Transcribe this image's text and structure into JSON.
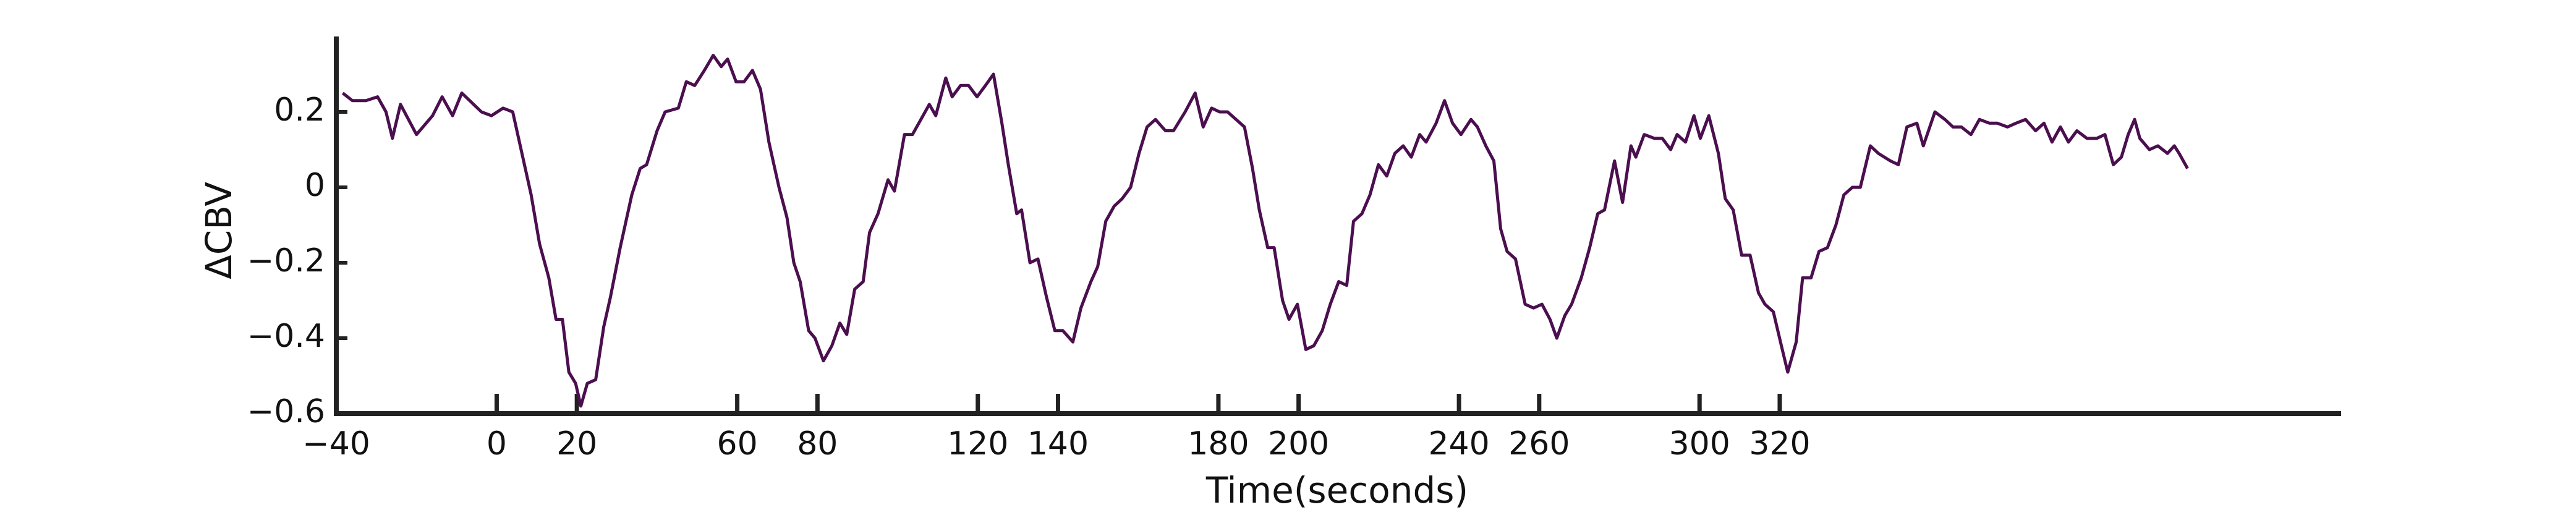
{
  "chart_data": {
    "type": "line",
    "xlabel": "Time(seconds)",
    "ylabel": "ΔCBV",
    "color": "#4b0f4f",
    "xlim": [
      -40,
      460
    ],
    "ylim": [
      -0.6,
      0.4
    ],
    "xticks": [
      {
        "value": -40,
        "label": "−40"
      },
      0,
      20,
      60,
      80,
      120,
      140,
      180,
      200,
      240,
      260,
      300,
      320
    ],
    "yticks": [
      {
        "value": -0.6,
        "label": "−0.6"
      },
      {
        "value": -0.4,
        "label": "−0.4"
      },
      {
        "value": -0.2,
        "label": "−0.2"
      },
      0,
      0.2
    ],
    "x": [
      -38.4,
      -36,
      -32.6,
      -29.7,
      -27.6,
      -26,
      -24,
      -20,
      -16,
      -13.6,
      -11,
      -8.7,
      -3.8,
      -1.3,
      1.6,
      4,
      8.6,
      10.7,
      13,
      14.8,
      16.4,
      18,
      19.7,
      21,
      22.6,
      24.7,
      26.7,
      28.4,
      30.8,
      33.7,
      35.8,
      37.4,
      40,
      42,
      45.3,
      47.3,
      49.4,
      51.8,
      54,
      56,
      57.6,
      59.7,
      61.7,
      63.8,
      65.8,
      67.9,
      70.4,
      72.4,
      74.1,
      75.7,
      77.8,
      79.4,
      81.5,
      83.6,
      85.6,
      87.3,
      89.3,
      91.4,
      93,
      95.1,
      97.6,
      99.2,
      101.7,
      103.7,
      105.8,
      107.9,
      109.5,
      112,
      113.6,
      115.7,
      117.7,
      119.8,
      121.9,
      123.9,
      126,
      127.6,
      129.7,
      130.9,
      133,
      135,
      137.1,
      139.2,
      141.2,
      143.7,
      145.7,
      148.2,
      149.9,
      151.9,
      154,
      156,
      158.1,
      160.2,
      162.2,
      164.3,
      166.8,
      168.8,
      171.7,
      174.2,
      176.2,
      178.3,
      180.3,
      182.3,
      184.4,
      186.5,
      188.5,
      190.2,
      192.3,
      193.9,
      196,
      197.6,
      199.7,
      201.8,
      203.8,
      205.9,
      207.9,
      210,
      212,
      213.7,
      215.8,
      217.8,
      219.9,
      222,
      224,
      226.1,
      228.1,
      230.2,
      231.8,
      234.3,
      236.4,
      238.4,
      240.5,
      243,
      244.6,
      246.7,
      248.7,
      250.4,
      252,
      254.1,
      256.5,
      258.6,
      260.7,
      262.7,
      264.4,
      266.4,
      268.1,
      270.5,
      272.6,
      274.6,
      276.3,
      278.8,
      280.8,
      282.9,
      284.1,
      286.2,
      288.7,
      290.7,
      292.8,
      294.4,
      296.5,
      298.6,
      300.2,
      302.3,
      304.7,
      306.4,
      308.4,
      310.5,
      312.6,
      314.7,
      316.3,
      318.4,
      320.4,
      322,
      324.1,
      325.7,
      327.8,
      329.8,
      331.9,
      334,
      336,
      338.1,
      340.1,
      342.6,
      344.6,
      347.6,
      349.6,
      351.7,
      354.2,
      355.8,
      358.7,
      361.2,
      363.2,
      365.3,
      367.7,
      369.8,
      372.3,
      374.3,
      376.8,
      378.9,
      381.3,
      383.8,
      385.9,
      387.9,
      390,
      392,
      394.1,
      396.6,
      399.1,
      401.1,
      403.2,
      405.2,
      406.9,
      408.5,
      409.8,
      412.2,
      414.3,
      416.7,
      418.4,
      419.6,
      421.7
    ],
    "values": [
      0.25,
      0.23,
      0.23,
      0.24,
      0.2,
      0.13,
      0.22,
      0.14,
      0.19,
      0.24,
      0.19,
      0.25,
      0.2,
      0.19,
      0.21,
      0.2,
      -0.02,
      -0.15,
      -0.24,
      -0.35,
      -0.35,
      -0.49,
      -0.52,
      -0.58,
      -0.52,
      -0.51,
      -0.37,
      -0.29,
      -0.16,
      -0.02,
      0.05,
      0.06,
      0.15,
      0.2,
      0.21,
      0.28,
      0.27,
      0.31,
      0.35,
      0.32,
      0.34,
      0.28,
      0.28,
      0.31,
      0.26,
      0.12,
      0,
      -0.08,
      -0.2,
      -0.25,
      -0.38,
      -0.4,
      -0.46,
      -0.42,
      -0.36,
      -0.39,
      -0.27,
      -0.25,
      -0.12,
      -0.07,
      0.02,
      -0.01,
      0.14,
      0.14,
      0.18,
      0.22,
      0.19,
      0.29,
      0.24,
      0.27,
      0.27,
      0.24,
      0.27,
      0.3,
      0.17,
      0.06,
      -0.07,
      -0.06,
      -0.2,
      -0.19,
      -0.29,
      -0.38,
      -0.38,
      -0.41,
      -0.32,
      -0.25,
      -0.21,
      -0.09,
      -0.05,
      -0.03,
      0,
      0.09,
      0.16,
      0.18,
      0.15,
      0.15,
      0.2,
      0.25,
      0.16,
      0.21,
      0.2,
      0.2,
      0.18,
      0.16,
      0.05,
      -0.06,
      -0.16,
      -0.16,
      -0.3,
      -0.35,
      -0.31,
      -0.43,
      -0.42,
      -0.38,
      -0.31,
      -0.25,
      -0.26,
      -0.09,
      -0.07,
      -0.02,
      0.06,
      0.03,
      0.09,
      0.11,
      0.08,
      0.14,
      0.12,
      0.17,
      0.23,
      0.17,
      0.14,
      0.18,
      0.16,
      0.11,
      0.07,
      -0.11,
      -0.17,
      -0.19,
      -0.31,
      -0.32,
      -0.31,
      -0.35,
      -0.4,
      -0.34,
      -0.31,
      -0.24,
      -0.16,
      -0.07,
      -0.06,
      0.07,
      -0.04,
      0.11,
      0.08,
      0.14,
      0.13,
      0.13,
      0.1,
      0.14,
      0.12,
      0.19,
      0.13,
      0.19,
      0.09,
      -0.03,
      -0.06,
      -0.18,
      -0.18,
      -0.28,
      -0.31,
      -0.33,
      -0.42,
      -0.49,
      -0.41,
      -0.24,
      -0.24,
      -0.17,
      -0.16,
      -0.1,
      -0.02,
      0,
      0,
      0.11,
      0.09,
      0.07,
      0.06,
      0.16,
      0.17,
      0.11,
      0.2,
      0.18,
      0.16,
      0.16,
      0.14,
      0.18,
      0.17,
      0.17,
      0.16,
      0.17,
      0.18,
      0.15,
      0.17,
      0.12,
      0.16,
      0.12,
      0.15,
      0.13,
      0.13,
      0.14,
      0.06,
      0.08,
      0.14,
      0.18,
      0.13,
      0.1,
      0.11,
      0.09,
      0.11,
      0.09,
      0.05
    ]
  }
}
